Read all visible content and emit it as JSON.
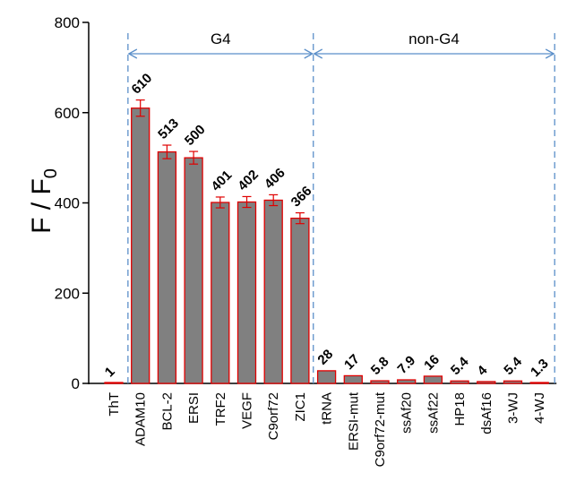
{
  "chart_data": {
    "type": "bar",
    "ylabel": "F / F",
    "ylabel_subscript": "0",
    "ylim": [
      0,
      800
    ],
    "yticks": [
      0,
      200,
      400,
      600,
      800
    ],
    "categories": [
      "ThT",
      "ADAM10",
      "BCL-2",
      "ERSI",
      "TRF2",
      "VEGF",
      "C9orf72",
      "ZIC1",
      "tRNA",
      "ERSI-mut",
      "C9orf72-mut",
      "ssAf20",
      "ssAf22",
      "HP18",
      "dsAf16",
      "3-WJ",
      "4-WJ"
    ],
    "values": [
      1,
      610,
      513,
      500,
      401,
      402,
      406,
      366,
      28,
      17,
      5.8,
      7.9,
      16,
      5.4,
      4,
      5.4,
      1.3
    ],
    "errors": [
      0,
      18,
      15,
      14,
      12,
      12,
      12,
      12,
      0,
      0,
      0,
      0,
      0,
      0,
      0,
      0,
      0
    ],
    "data_labels": [
      "1",
      "610",
      "513",
      "500",
      "401",
      "402",
      "406",
      "366",
      "28",
      "17",
      "5.8",
      "7.9",
      "16",
      "5.4",
      "4",
      "5.4",
      "1.3"
    ],
    "groups": [
      {
        "label": "G4",
        "start": 1,
        "end": 7
      },
      {
        "label": "non-G4",
        "start": 8,
        "end": 16
      }
    ],
    "bar_fill": "#808080",
    "bar_stroke": "#e00000",
    "error_color": "#e00000",
    "divider_color": "#5b8fc9"
  }
}
